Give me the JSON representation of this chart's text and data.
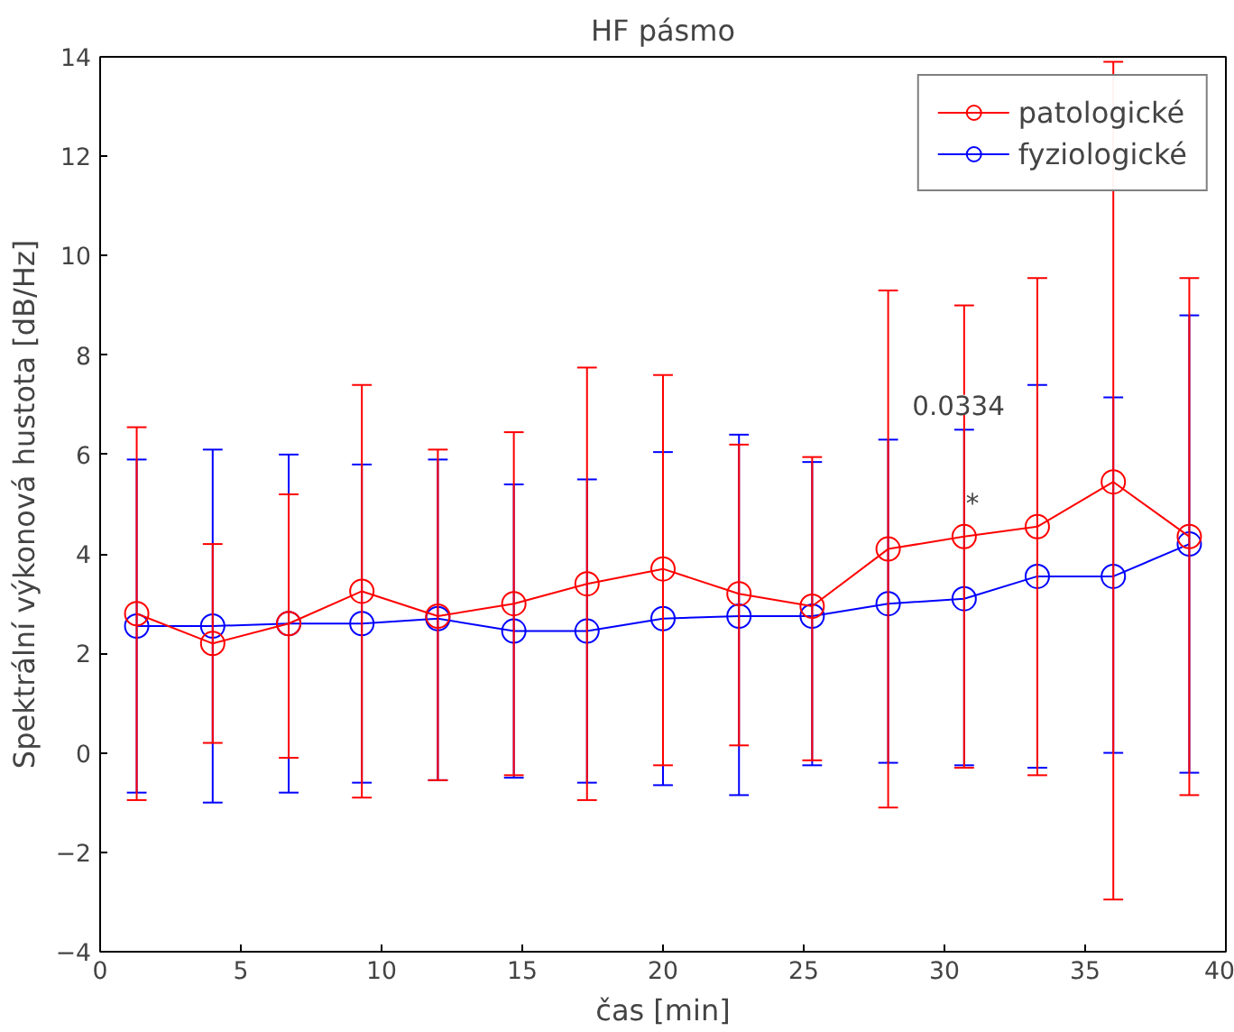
{
  "chart_data": {
    "type": "line",
    "title": "HF pásmo",
    "xlabel": "čas [min]",
    "ylabel": "Spektrální výkonová hustota [dB/Hz]",
    "x": [
      1.3,
      4.0,
      6.7,
      9.3,
      12.0,
      14.7,
      17.3,
      20.0,
      22.7,
      25.3,
      28.0,
      30.7,
      33.3,
      36.0,
      38.7
    ],
    "series": [
      {
        "name": "patologické",
        "color": "#ff0000",
        "values": [
          2.8,
          2.2,
          2.6,
          3.25,
          2.75,
          3.0,
          3.4,
          3.7,
          3.2,
          2.95,
          4.1,
          4.35,
          4.55,
          5.45,
          4.35
        ],
        "errors": [
          [
            -0.95,
            6.55
          ],
          [
            0.2,
            4.2
          ],
          [
            -0.1,
            5.2
          ],
          [
            -0.9,
            7.4
          ],
          [
            -0.55,
            6.1
          ],
          [
            -0.45,
            6.45
          ],
          [
            -0.95,
            7.75
          ],
          [
            -0.25,
            7.6
          ],
          [
            0.15,
            6.2
          ],
          [
            -0.15,
            5.95
          ],
          [
            -1.1,
            9.3
          ],
          [
            -0.3,
            9.0
          ],
          [
            -0.45,
            9.55
          ],
          [
            -2.95,
            13.9
          ],
          [
            -0.85,
            9.55
          ]
        ]
      },
      {
        "name": "fyziologické",
        "color": "#0000ff",
        "values": [
          2.55,
          2.55,
          2.6,
          2.6,
          2.7,
          2.45,
          2.45,
          2.7,
          2.75,
          2.75,
          3.0,
          3.1,
          3.55,
          3.55,
          4.2
        ],
        "errors": [
          [
            -0.8,
            5.9
          ],
          [
            -1.0,
            6.1
          ],
          [
            -0.8,
            6.0
          ],
          [
            -0.6,
            5.8
          ],
          [
            -0.55,
            5.9
          ],
          [
            -0.5,
            5.4
          ],
          [
            -0.6,
            5.5
          ],
          [
            -0.65,
            6.05
          ],
          [
            -0.85,
            6.4
          ],
          [
            -0.25,
            5.85
          ],
          [
            -0.2,
            6.3
          ],
          [
            -0.25,
            6.5
          ],
          [
            -0.3,
            7.4
          ],
          [
            0.0,
            7.15
          ],
          [
            -0.4,
            8.8
          ]
        ]
      }
    ],
    "xlim": [
      0,
      40
    ],
    "xticks": [
      0,
      5,
      10,
      15,
      20,
      25,
      30,
      35,
      40
    ],
    "ylim": [
      -4,
      14
    ],
    "yticks": [
      -4,
      -2,
      0,
      2,
      4,
      6,
      8,
      10,
      12,
      14
    ],
    "annotations": [
      {
        "text": "0.0334",
        "x": 30.5,
        "y": 7.0
      },
      {
        "text": "*",
        "x": 31.0,
        "y": 5.0
      }
    ],
    "grid": false,
    "legend": "top right",
    "marker": "circle",
    "line_style": "solid"
  }
}
